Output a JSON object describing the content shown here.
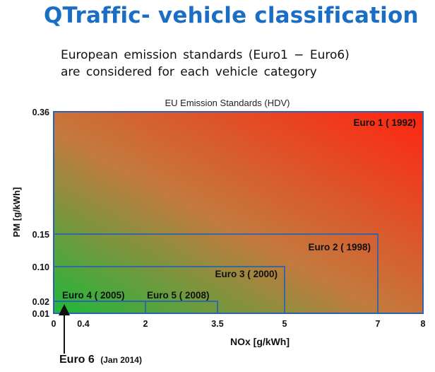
{
  "slide": {
    "title": "QTraffic- vehicle classification",
    "subtitle_lines": [
      "European emission standards (Euro1 − Euro6)",
      "are considered for each vehicle category"
    ]
  },
  "colors": {
    "title": "#1a6fc4",
    "gradient_green": "#1fb83c",
    "gradient_red": "#ff2410",
    "region_border": "#2f62b0"
  },
  "chart_data": {
    "type": "area",
    "title": "EU Emission Standards (HDV)",
    "xlabel": "NOx [g/kWh]",
    "ylabel": "PM [g/kWh]",
    "xlim": [
      0,
      8
    ],
    "ylim": [
      0,
      0.36
    ],
    "x_scale": "nonlinear (tick positions not proportional)",
    "y_scale": "nonlinear (tick positions not proportional)",
    "x_ticks": [
      "0",
      "0.4",
      "2",
      "3.5",
      "5",
      "7",
      "8"
    ],
    "y_ticks": [
      "0.36",
      "0.15",
      "0.10",
      "0.02",
      "0.01"
    ],
    "series": [
      {
        "name": "Euro 1 ( 1992)",
        "nox": 8,
        "pm": 0.36
      },
      {
        "name": "Euro 2 ( 1998)",
        "nox": 7,
        "pm": 0.15
      },
      {
        "name": "Euro 3 ( 2000)",
        "nox": 5,
        "pm": 0.1
      },
      {
        "name": "Euro 4 ( 2005)",
        "nox": 3.5,
        "pm": 0.02
      },
      {
        "name": "Euro 5 ( 2008)",
        "nox": 2,
        "pm": 0.02
      },
      {
        "name": "Euro 6",
        "note": "(Jan 2014)",
        "nox": 0.4,
        "pm": 0.01
      }
    ],
    "grid": false,
    "legend": "none"
  }
}
